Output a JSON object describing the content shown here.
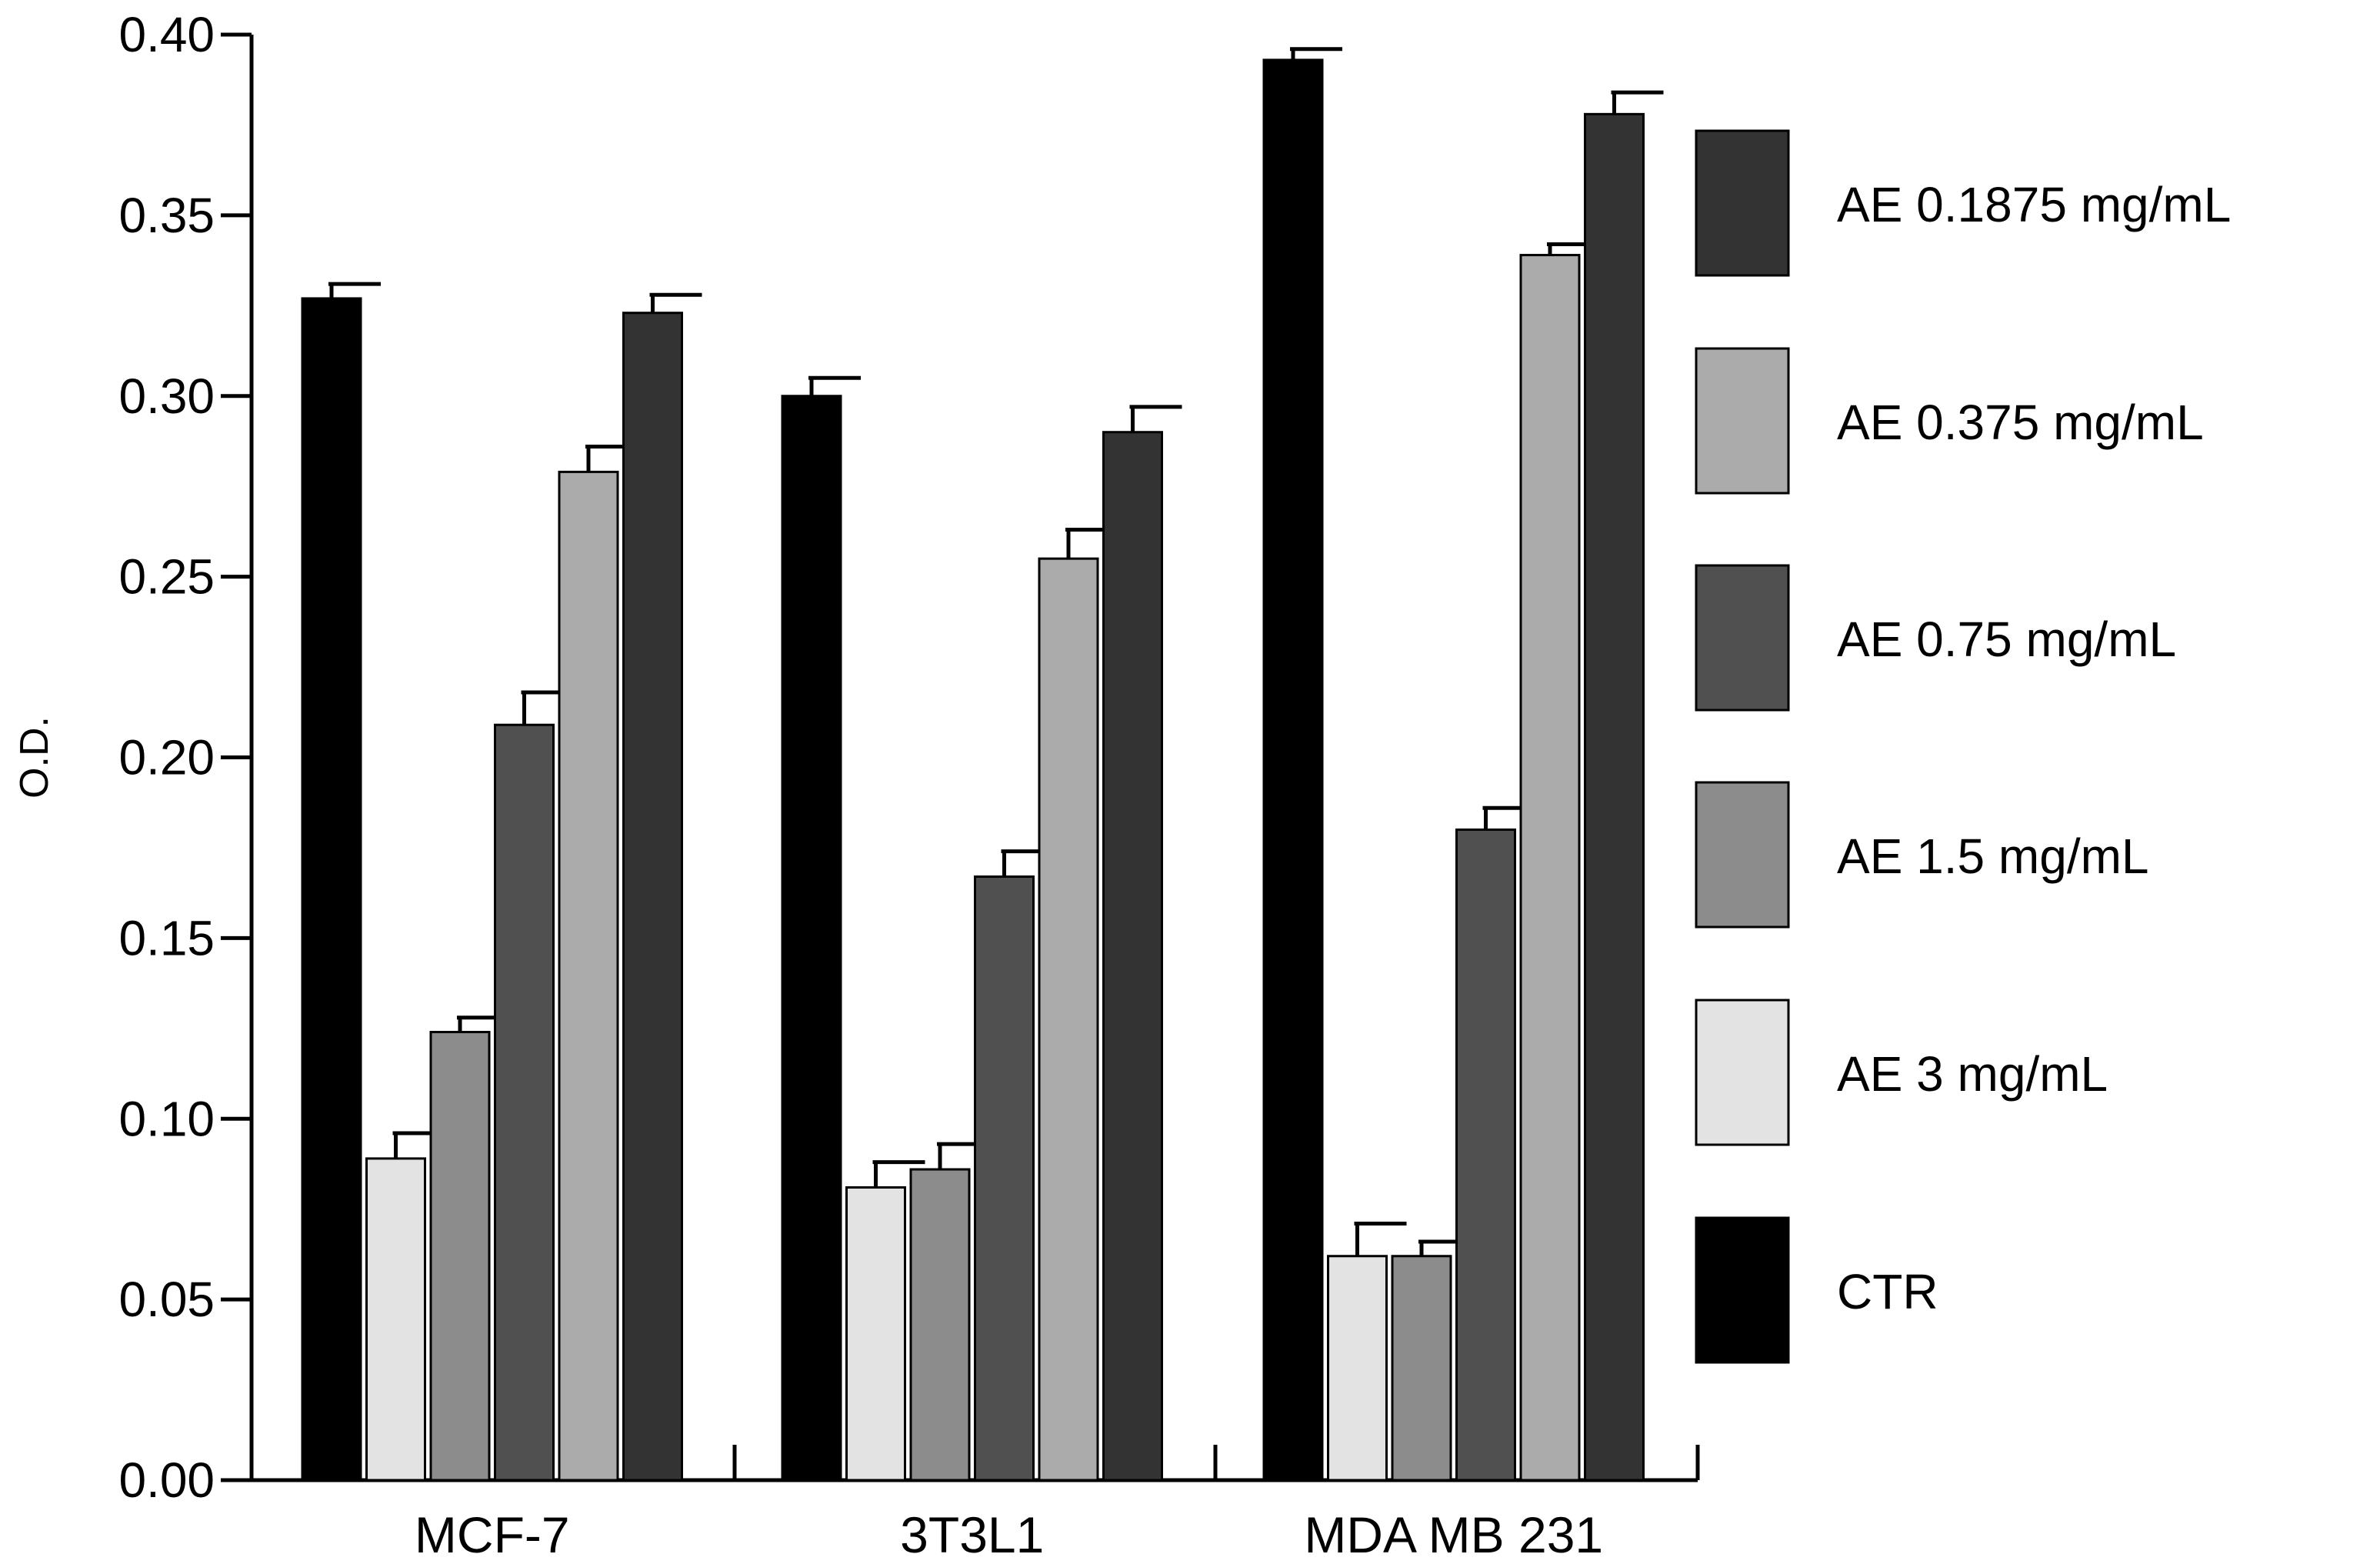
{
  "chart_data": {
    "type": "bar",
    "title": "",
    "xlabel": "",
    "ylabel": "O.D.",
    "ylim": [
      0,
      0.4
    ],
    "yticks": [
      "0.00",
      "0.05",
      "0.10",
      "0.15",
      "0.20",
      "0.25",
      "0.30",
      "0.35",
      "0.40"
    ],
    "categories": [
      "MCF-7",
      "3T3L1",
      "MDA MB 231"
    ],
    "legend_position": "right",
    "series": [
      {
        "name": "CTR",
        "color": "#000000",
        "values": [
          0.327,
          0.3,
          0.393
        ],
        "errors": [
          0.004,
          0.005,
          0.003
        ]
      },
      {
        "name": "AE 3 mg/mL",
        "color": "#e3e3e3",
        "values": [
          0.089,
          0.081,
          0.062
        ],
        "errors": [
          0.007,
          0.007,
          0.009
        ]
      },
      {
        "name": "AE 1.5 mg/mL",
        "color": "#8c8c8c",
        "values": [
          0.124,
          0.086,
          0.062
        ],
        "errors": [
          0.004,
          0.007,
          0.004
        ]
      },
      {
        "name": "AE 0.75 mg/mL",
        "color": "#505050",
        "values": [
          0.209,
          0.167,
          0.18
        ],
        "errors": [
          0.009,
          0.007,
          0.006
        ]
      },
      {
        "name": "AE 0.375 mg/mL",
        "color": "#ababab",
        "values": [
          0.279,
          0.255,
          0.339
        ],
        "errors": [
          0.007,
          0.008,
          0.003
        ]
      },
      {
        "name": "AE 0.1875 mg/mL",
        "color": "#333333",
        "values": [
          0.323,
          0.29,
          0.378
        ],
        "errors": [
          0.005,
          0.007,
          0.006
        ]
      }
    ],
    "legend_order": [
      "AE 0.1875 mg/mL",
      "AE 0.375 mg/mL",
      "AE 0.75 mg/mL",
      "AE 1.5 mg/mL",
      "AE 3 mg/mL",
      "CTR"
    ]
  }
}
